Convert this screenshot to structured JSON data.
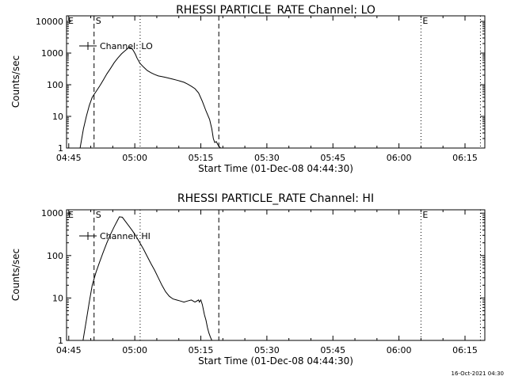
{
  "footer_timestamp": "16-Oct-2021 04:30",
  "chart_data": [
    {
      "type": "line",
      "title": "RHESSI PARTICLE_RATE Channel: LO",
      "xlabel": "Start Time (01-Dec-08 04:44:30)",
      "ylabel": "Counts/sec",
      "yscale": "log",
      "xlim": [
        0,
        5700
      ],
      "ylim": [
        1,
        15000
      ],
      "x_tick_values": [
        30,
        930,
        1830,
        2730,
        3630,
        4530,
        5430
      ],
      "x_tick_labels": [
        "04:45",
        "05:00",
        "05:15",
        "05:30",
        "05:45",
        "06:00",
        "06:15"
      ],
      "y_tick_values": [
        1,
        10,
        100,
        1000,
        10000
      ],
      "y_tick_labels": [
        "1",
        "10",
        "100",
        "1000",
        "10000"
      ],
      "legend": "Channel: LO",
      "markers": [
        {
          "label": "S",
          "x": 375,
          "style": "dashed"
        },
        {
          "label": "",
          "x": 1003,
          "style": "dotted"
        },
        {
          "label": "",
          "x": 2075,
          "style": "dashed"
        },
        {
          "label": "E",
          "x": 4830,
          "style": "dotted"
        },
        {
          "label": "",
          "x": 5640,
          "style": "dotted"
        }
      ],
      "corner_label": "E",
      "series": [
        {
          "name": "Channel: LO",
          "x": [
            185,
            230,
            270,
            310,
            350,
            400,
            450,
            500,
            550,
            600,
            650,
            700,
            750,
            800,
            850,
            880,
            900,
            920,
            940,
            960,
            1000,
            1050,
            1100,
            1150,
            1200,
            1250,
            1300,
            1350,
            1400,
            1450,
            1500,
            1550,
            1600,
            1650,
            1700,
            1750,
            1800,
            1850,
            1900,
            1950,
            1980,
            2000,
            2020,
            2040,
            2060,
            2080,
            2100
          ],
          "y": [
            1,
            4,
            10,
            22,
            40,
            60,
            90,
            140,
            220,
            330,
            500,
            700,
            950,
            1200,
            1500,
            1450,
            1300,
            1100,
            900,
            700,
            480,
            360,
            280,
            240,
            210,
            190,
            180,
            170,
            160,
            150,
            140,
            130,
            120,
            105,
            90,
            75,
            55,
            30,
            15,
            8,
            4,
            2,
            1.5,
            1.6,
            1.3,
            1.1,
            1
          ]
        }
      ]
    },
    {
      "type": "line",
      "title": "RHESSI PARTICLE_RATE Channel: HI",
      "xlabel": "Start Time (01-Dec-08 04:44:30)",
      "ylabel": "Counts/sec",
      "yscale": "log",
      "xlim": [
        0,
        5700
      ],
      "ylim": [
        1,
        1200
      ],
      "x_tick_values": [
        30,
        930,
        1830,
        2730,
        3630,
        4530,
        5430
      ],
      "x_tick_labels": [
        "04:45",
        "05:00",
        "05:15",
        "05:30",
        "05:45",
        "06:00",
        "06:15"
      ],
      "y_tick_values": [
        1,
        10,
        100,
        1000
      ],
      "y_tick_labels": [
        "1",
        "10",
        "100",
        "1000"
      ],
      "legend": "Channel: HI",
      "markers": [
        {
          "label": "S",
          "x": 375,
          "style": "dashed"
        },
        {
          "label": "",
          "x": 1003,
          "style": "dotted"
        },
        {
          "label": "",
          "x": 2075,
          "style": "dashed"
        },
        {
          "label": "E",
          "x": 4830,
          "style": "dotted"
        },
        {
          "label": "",
          "x": 5640,
          "style": "dotted"
        }
      ],
      "corner_label": "E",
      "series": [
        {
          "name": "Channel: HI",
          "x": [
            225,
            270,
            310,
            350,
            400,
            450,
            500,
            550,
            600,
            650,
            700,
            720,
            760,
            800,
            850,
            900,
            950,
            1000,
            1050,
            1100,
            1150,
            1200,
            1250,
            1300,
            1350,
            1400,
            1450,
            1500,
            1550,
            1600,
            1650,
            1700,
            1750,
            1800,
            1810,
            1830,
            1850,
            1880,
            1900,
            1920,
            1940,
            1960,
            1980
          ],
          "y": [
            1,
            3,
            8,
            20,
            40,
            70,
            120,
            200,
            320,
            480,
            700,
            820,
            800,
            650,
            500,
            380,
            280,
            200,
            140,
            95,
            65,
            45,
            30,
            20,
            14,
            11,
            9.5,
            9,
            8.5,
            8,
            8.5,
            9,
            8,
            9,
            8,
            9,
            7,
            4,
            3,
            2,
            1.5,
            1.2,
            1
          ]
        }
      ]
    }
  ]
}
